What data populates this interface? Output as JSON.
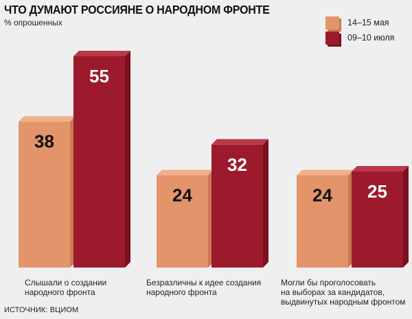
{
  "chart_data": {
    "type": "bar",
    "title": "ЧТО ДУМАЮТ РОССИЯНЕ О НАРОДНОМ ФРОНТЕ",
    "subtitle": "% опрошенных",
    "categories": [
      [
        "Слышали о создании",
        "народного фронта"
      ],
      [
        "Безразличны к идее создания",
        "народного фронта"
      ],
      [
        "Могли бы проголосовать",
        "на выборах за кандидатов,",
        "выдвинутых народным фронтом"
      ]
    ],
    "series": [
      {
        "name": "14–15 мая",
        "values": [
          38,
          24,
          24
        ],
        "color": "#e3946a",
        "side": "#c97a52",
        "top": "#f0b08e"
      },
      {
        "name": "09–10 июля",
        "values": [
          55,
          32,
          25
        ],
        "color": "#9c1a2c",
        "side": "#7a1020",
        "top": "#b8384a"
      }
    ],
    "ylim": [
      0,
      60
    ],
    "data_labels": true,
    "legend_position": "top-right",
    "source": "ИСТОЧНИК: ВЦИОМ"
  }
}
